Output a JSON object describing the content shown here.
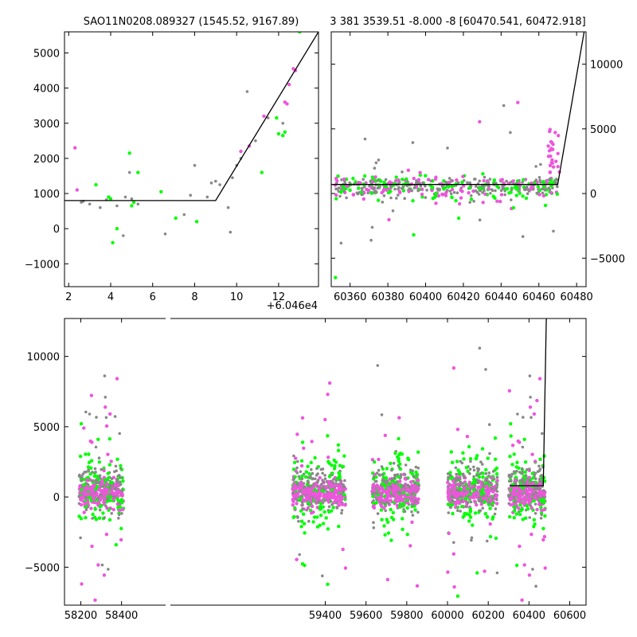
{
  "colors": {
    "gray": "#888888",
    "green": "#00ff00",
    "magenta": "#ee55dd",
    "model": "#000000",
    "axes": "#000000",
    "background": "#ffffff"
  },
  "chart_data": [
    {
      "id": "top-left",
      "type": "scatter",
      "title": "SAO11N0208.089327 (1545.52, 9167.89)",
      "x_offset_label": "+6.046e4",
      "xlim": [
        1.8,
        13.9
      ],
      "ylim": [
        -1650,
        5600
      ],
      "xticks": [
        2,
        4,
        6,
        8,
        10,
        12
      ],
      "yticks": [
        -1000,
        0,
        1000,
        2000,
        3000,
        4000,
        5000
      ],
      "y_axis_side": "left",
      "series": [
        {
          "color": "gray",
          "points": [
            [
              2.6,
              750
            ],
            [
              2.7,
              780
            ],
            [
              3.0,
              700
            ],
            [
              3.5,
              600
            ],
            [
              3.8,
              820
            ],
            [
              4.3,
              650
            ],
            [
              4.6,
              -200
            ],
            [
              4.7,
              900
            ],
            [
              4.9,
              1600
            ],
            [
              5.0,
              850
            ],
            [
              5.3,
              700
            ],
            [
              6.6,
              -150
            ],
            [
              7.5,
              400
            ],
            [
              7.8,
              950
            ],
            [
              8.0,
              1800
            ],
            [
              8.6,
              900
            ],
            [
              8.8,
              1300
            ],
            [
              9.0,
              1350
            ],
            [
              9.2,
              1250
            ],
            [
              9.6,
              600
            ],
            [
              9.7,
              -100
            ],
            [
              9.8,
              1450
            ],
            [
              10.0,
              1800
            ],
            [
              10.2,
              2000
            ],
            [
              10.5,
              3900
            ],
            [
              10.9,
              2500
            ],
            [
              11.5,
              3150
            ],
            [
              12.2,
              3000
            ]
          ]
        },
        {
          "color": "green",
          "points": [
            [
              3.3,
              1250
            ],
            [
              3.9,
              900
            ],
            [
              4.0,
              850
            ],
            [
              4.1,
              -400
            ],
            [
              4.3,
              0
            ],
            [
              4.9,
              2150
            ],
            [
              5.0,
              650
            ],
            [
              5.1,
              750
            ],
            [
              5.3,
              1600
            ],
            [
              6.4,
              1050
            ],
            [
              7.1,
              300
            ],
            [
              8.1,
              200
            ],
            [
              11.2,
              1600
            ],
            [
              11.9,
              3150
            ],
            [
              12.0,
              2700
            ],
            [
              12.2,
              2650
            ],
            [
              12.3,
              2750
            ],
            [
              13.0,
              5600
            ]
          ]
        },
        {
          "color": "magenta",
          "points": [
            [
              2.3,
              2300
            ],
            [
              2.4,
              1100
            ],
            [
              10.2,
              2200
            ],
            [
              10.6,
              2350
            ],
            [
              11.3,
              3200
            ],
            [
              12.3,
              3600
            ],
            [
              12.4,
              3550
            ],
            [
              12.5,
              4100
            ],
            [
              12.7,
              4550
            ],
            [
              12.8,
              4500
            ]
          ]
        }
      ],
      "model_line": [
        [
          1.8,
          800
        ],
        [
          9.0,
          800
        ],
        [
          13.9,
          5600
        ]
      ]
    },
    {
      "id": "top-right",
      "type": "scatter",
      "title": "3 381 3539.51 -8.000 -8 [60470.541, 60472.918]",
      "xlim": [
        60350,
        60485
      ],
      "ylim": [
        -7200,
        12500
      ],
      "xticks": [
        60360,
        60380,
        60400,
        60420,
        60440,
        60460,
        60480
      ],
      "yticks": [
        -5000,
        0,
        5000,
        10000
      ],
      "y_axis_side": "right",
      "model_line": [
        [
          60350,
          700
        ],
        [
          60470,
          700
        ],
        [
          60484,
          12500
        ]
      ]
    },
    {
      "id": "bottom",
      "type": "scatter",
      "title": "",
      "xlim": [
        58120,
        60680
      ],
      "ylim": [
        -7700,
        12700
      ],
      "xticks": [
        58200,
        58400,
        59400,
        59600,
        59800,
        60000,
        60200,
        60400,
        60600
      ],
      "yticks": [
        -5000,
        0,
        5000,
        10000
      ],
      "y_axis_side": "left",
      "seasons": [
        [
          58190,
          58410
        ],
        [
          59240,
          59500
        ],
        [
          59630,
          59860
        ],
        [
          60000,
          60245
        ],
        [
          60300,
          60480
        ]
      ],
      "model_line": [
        [
          60305,
          800
        ],
        [
          60470,
          800
        ],
        [
          60485,
          12700
        ]
      ]
    }
  ]
}
